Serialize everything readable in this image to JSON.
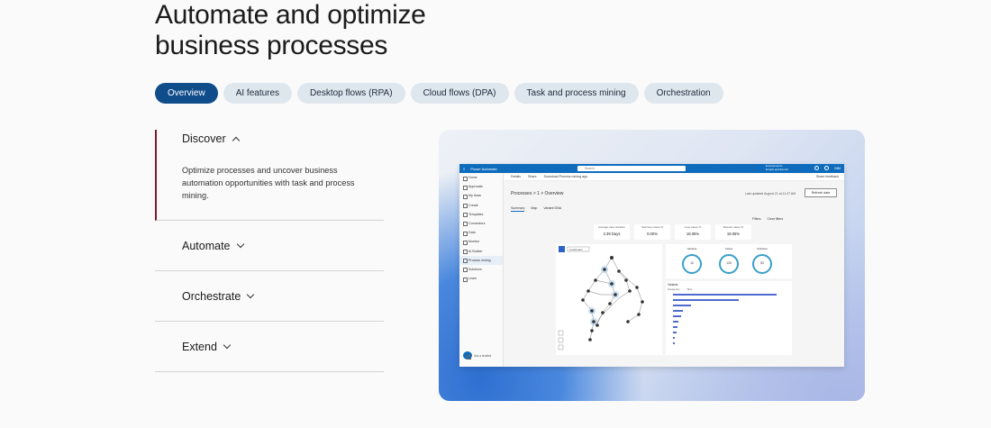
{
  "hero": {
    "title_line1": "Automate and optimize",
    "title_line2": "business processes"
  },
  "tabs": [
    {
      "label": "Overview",
      "active": true
    },
    {
      "label": "AI features"
    },
    {
      "label": "Desktop flows (RPA)"
    },
    {
      "label": "Cloud flows (DPA)"
    },
    {
      "label": "Task and process mining"
    },
    {
      "label": "Orchestration"
    }
  ],
  "accordion": {
    "open_item": {
      "label": "Discover",
      "body": "Optimize processes and uncover business automation opportunities with task and process mining."
    },
    "items": [
      {
        "label": "Automate"
      },
      {
        "label": "Orchestrate"
      },
      {
        "label": "Extend"
      }
    ]
  },
  "screenshot": {
    "app_name": "Power Automate",
    "search_placeholder": "Search",
    "environment": "Environments",
    "environment_name": "Emails and Events",
    "account_initials": "MM",
    "sidebar": [
      "Home",
      "Approvals",
      "My flows",
      "Create",
      "Templates",
      "Connectors",
      "Data",
      "Monitor",
      "AI Builder",
      "Process mining",
      "Solutions",
      "Learn"
    ],
    "sidebar_selected": "Process mining",
    "ask_label": "Ask a chatbot",
    "commands": [
      "Details",
      "Share",
      "Download Process mining app"
    ],
    "feedback": "Share feedback",
    "breadcrumb": "Processes  >  1  >  Overview",
    "last_updated": "Last updated August 21 at 11:47 AM",
    "refresh_label": "Refresh data",
    "page_tabs": [
      "Summary",
      "Map",
      "Variant DNA"
    ],
    "filters": [
      "Filters",
      "Clear filters"
    ],
    "kpis": [
      {
        "label": "Average case duration",
        "value": "2.39 Days"
      },
      {
        "label": "Self-loop cases %",
        "value": "0.00%"
      },
      {
        "label": "Loop cases %",
        "value": "18.05%"
      },
      {
        "label": "Rework cases %",
        "value": "18.05%"
      }
    ],
    "map_dropdown": "Look/Learn",
    "rings": [
      {
        "label": "Variants",
        "value": "10"
      },
      {
        "label": "Cases",
        "value": "133"
      },
      {
        "label": "Activities",
        "value": "53"
      }
    ],
    "variants_title": "Variants",
    "variants_cols": [
      "Frequency",
      "Time"
    ],
    "variant_bars": [
      0.94,
      0.6,
      0.16,
      0.09,
      0.07,
      0.05,
      0.04,
      0.03,
      0.02,
      0.02
    ]
  }
}
